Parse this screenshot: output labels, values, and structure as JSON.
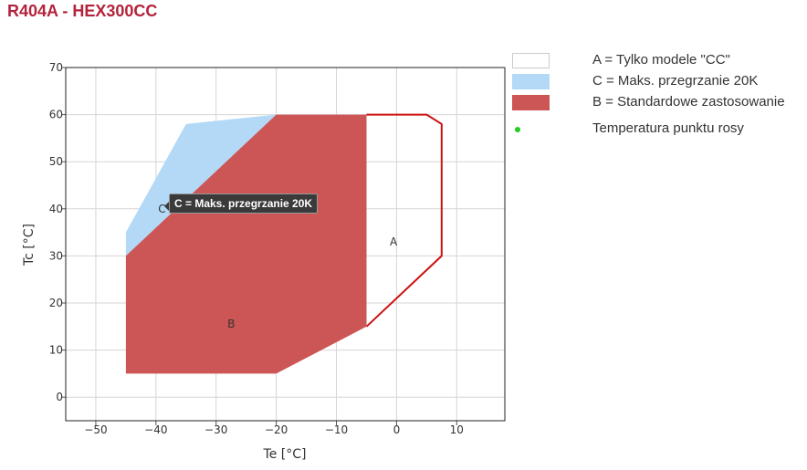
{
  "title": "R404A - HEX300CC",
  "colors": {
    "title": "#b3233b",
    "standard_fill": "#cc5555",
    "superheat_fill": "#b3d9f7",
    "cc_outline": "#cc1111",
    "dew_point": "#22cc22"
  },
  "chart_data": {
    "type": "area",
    "xlabel": "Te [°C]",
    "ylabel": "Tc [°C]",
    "xlim": [
      -55,
      18
    ],
    "ylim": [
      -5,
      70
    ],
    "xticks": [
      -50,
      -40,
      -30,
      -20,
      -10,
      0,
      10
    ],
    "yticks": [
      0,
      10,
      20,
      30,
      40,
      50,
      60,
      70
    ],
    "grid": true,
    "legend_position": "right",
    "regions": [
      {
        "id": "C",
        "label": "C",
        "name": "C = Maks. przegrzanie 20K",
        "style": "fill",
        "color": "#b3d9f7",
        "label_at": [
          -39,
          40
        ],
        "points": [
          [
            -45,
            30
          ],
          [
            -45,
            35
          ],
          [
            -35,
            58
          ],
          [
            -20,
            60
          ],
          [
            -45,
            30
          ]
        ]
      },
      {
        "id": "B",
        "label": "B",
        "name": "B = Standardowe zastosowanie",
        "style": "fill",
        "color": "#cc5555",
        "label_at": [
          -27.5,
          15.5
        ],
        "points": [
          [
            -45,
            5
          ],
          [
            -45,
            30
          ],
          [
            -20,
            60
          ],
          [
            -5,
            60
          ],
          [
            -5,
            15
          ],
          [
            -20,
            5
          ]
        ]
      },
      {
        "id": "A",
        "label": "A",
        "name": "A = Tylko modele \"CC\"",
        "style": "outline",
        "color": "#cc1111",
        "label_at": [
          -0.5,
          33
        ],
        "points": [
          [
            -5,
            60
          ],
          [
            5,
            60
          ],
          [
            7.5,
            58
          ],
          [
            7.5,
            30
          ],
          [
            -5,
            15
          ]
        ]
      }
    ],
    "tooltip": "C = Maks. przegrzanie 20K"
  },
  "legend": [
    {
      "label": "A = Tylko modele \"CC\"",
      "swatch": "outline",
      "color": "#ffffff",
      "border": "#cccccc"
    },
    {
      "label": "C = Maks. przegrzanie 20K",
      "swatch": "fill",
      "color": "#b3d9f7"
    },
    {
      "label": "B = Standardowe zastosowanie",
      "swatch": "fill",
      "color": "#cc5555"
    },
    {
      "label": "Temperatura punktu rosy",
      "swatch": "dot",
      "color": "#22cc22"
    }
  ]
}
